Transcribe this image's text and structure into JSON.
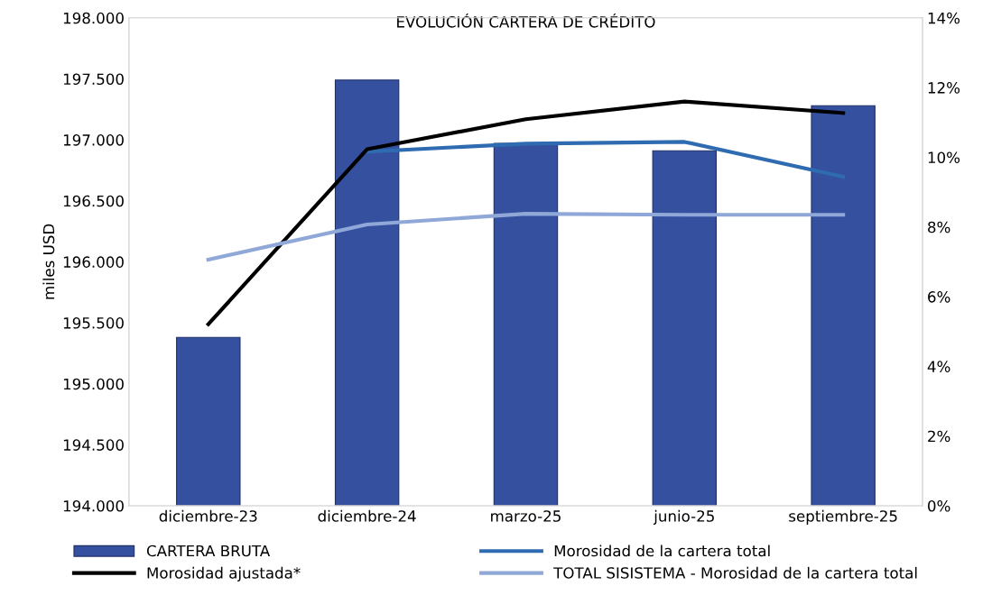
{
  "chart_data": {
    "type": "bar",
    "title": "EVOLUCIÓN CARTERA DE CRÉDITO",
    "ylabel": "miles USD",
    "categories": [
      "diciembre-23",
      "diciembre-24",
      "marzo-25",
      "junio-25",
      "septiembre-25"
    ],
    "series": [
      {
        "name": "CARTERA BRUTA",
        "color": "#34509f",
        "values": [
          195380,
          197490,
          196970,
          196910,
          197280
        ]
      },
      {
        "name": "Morosidad de la cartera total",
        "type": "line",
        "axis": "y2",
        "color": "#2e6bb0",
        "values": [
          null,
          10.16,
          10.39,
          10.44,
          9.44
        ]
      },
      {
        "name": "Morosidad ajustada*",
        "type": "line",
        "axis": "y2",
        "color": "#000000",
        "values": [
          5.21,
          10.23,
          11.09,
          11.6,
          11.27
        ]
      },
      {
        "name": "TOTAL SISISTEMA - Morosidad de la cartera total",
        "type": "line",
        "axis": "y2",
        "color": "#8fa8d8",
        "values": [
          7.06,
          8.07,
          8.38,
          8.35,
          8.35
        ]
      }
    ],
    "ylim": [
      194000,
      198000
    ],
    "yticks": [
      {
        "value": 194000,
        "label": "194.000"
      },
      {
        "value": 194500,
        "label": "194.500"
      },
      {
        "value": 195000,
        "label": "195.000"
      },
      {
        "value": 195500,
        "label": "195.500"
      },
      {
        "value": 196000,
        "label": "196.000"
      },
      {
        "value": 196500,
        "label": "196.500"
      },
      {
        "value": 197000,
        "label": "197.000"
      },
      {
        "value": 197500,
        "label": "197.500"
      },
      {
        "value": 198000,
        "label": "198.000"
      }
    ],
    "y2lim": [
      0,
      14
    ],
    "y2ticks": [
      {
        "value": 0,
        "label": "0%"
      },
      {
        "value": 2,
        "label": "2%"
      },
      {
        "value": 4,
        "label": "4%"
      },
      {
        "value": 6,
        "label": "6%"
      },
      {
        "value": 8,
        "label": "8%"
      },
      {
        "value": 10,
        "label": "10%"
      },
      {
        "value": 12,
        "label": "12%"
      },
      {
        "value": 14,
        "label": "14%"
      }
    ],
    "grid": false,
    "legend": "bottom",
    "marker": "none",
    "line_style": "solid"
  }
}
